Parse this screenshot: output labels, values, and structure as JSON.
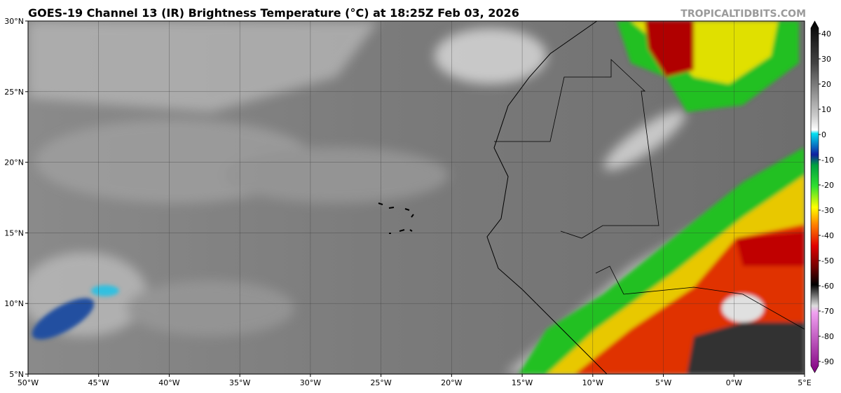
{
  "header": {
    "title": "GOES-19 Channel 13 (IR) Brightness Temperature (°C) at 18:25Z Feb 03, 2026",
    "credit": "TROPICALTIDBITS.COM"
  },
  "map": {
    "lon_ticks": [
      {
        "value": -50,
        "label": "50°W"
      },
      {
        "value": -45,
        "label": "45°W"
      },
      {
        "value": -40,
        "label": "40°W"
      },
      {
        "value": -35,
        "label": "35°W"
      },
      {
        "value": -30,
        "label": "30°W"
      },
      {
        "value": -25,
        "label": "25°W"
      },
      {
        "value": -20,
        "label": "20°W"
      },
      {
        "value": -15,
        "label": "15°W"
      },
      {
        "value": -10,
        "label": "10°W"
      },
      {
        "value": -5,
        "label": "5°W"
      },
      {
        "value": 0,
        "label": "0°W"
      },
      {
        "value": 5,
        "label": "5°E"
      }
    ],
    "lat_ticks": [
      {
        "value": 30,
        "label": "30°N"
      },
      {
        "value": 25,
        "label": "25°N"
      },
      {
        "value": 20,
        "label": "20°N"
      },
      {
        "value": 15,
        "label": "15°N"
      },
      {
        "value": 10,
        "label": "10°N"
      },
      {
        "value": 5,
        "label": "5°N"
      }
    ]
  },
  "colorbar": {
    "ticks": [
      40,
      30,
      20,
      10,
      0,
      -10,
      -20,
      -30,
      -40,
      -50,
      -60,
      -70,
      -80,
      -90
    ]
  }
}
